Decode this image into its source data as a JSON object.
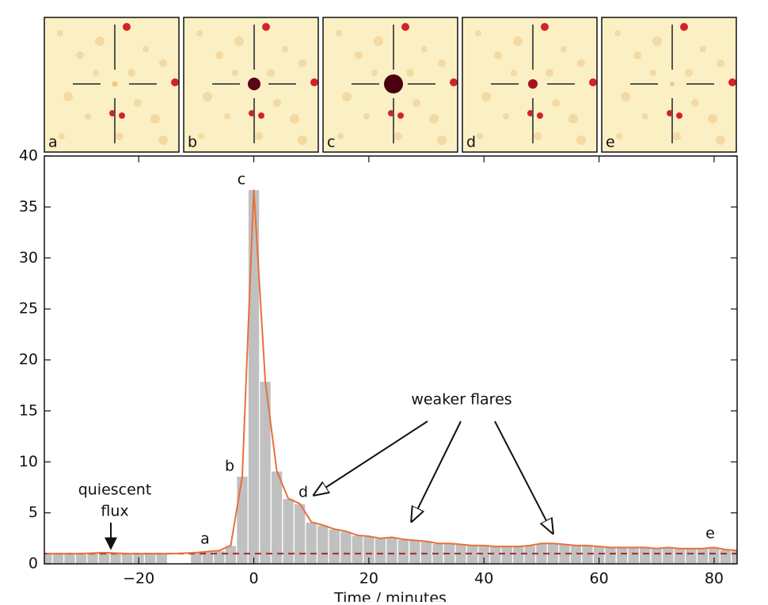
{
  "panels": [
    "a",
    "b",
    "c",
    "d",
    "e"
  ],
  "chart_data": {
    "type": "bar",
    "xlabel": "Time / minutes",
    "xlim": [
      -36.4,
      84
    ],
    "ylim": [
      0,
      40
    ],
    "yticks": [
      0,
      5,
      10,
      15,
      20,
      25,
      30,
      35,
      40
    ],
    "xticks": [
      {
        "value": -20,
        "label": "−20"
      },
      0,
      20,
      40,
      60,
      80
    ],
    "bar_width": 2,
    "bars": {
      "color": "#c0c0c0",
      "x": [
        -36,
        -34,
        -32,
        -30,
        -28,
        -26,
        -24,
        -22,
        -20,
        -18,
        -16,
        -14,
        -12,
        -10,
        -8,
        -6,
        -4,
        -2,
        0,
        2,
        4,
        6,
        8,
        10,
        12,
        14,
        16,
        18,
        20,
        22,
        24,
        26,
        28,
        30,
        32,
        34,
        36,
        38,
        40,
        42,
        44,
        46,
        48,
        50,
        52,
        54,
        56,
        58,
        60,
        62,
        64,
        66,
        68,
        70,
        72,
        74,
        76,
        78,
        80,
        82,
        84
      ],
      "values": [
        1.0,
        1.0,
        1.0,
        1.0,
        1.05,
        1.1,
        1.05,
        1.0,
        1.0,
        1.0,
        1.0,
        null,
        null,
        1.1,
        1.2,
        1.3,
        1.8,
        8.6,
        36.7,
        17.9,
        9.1,
        6.4,
        5.9,
        4.1,
        3.8,
        3.4,
        3.2,
        2.8,
        2.7,
        2.5,
        2.6,
        2.4,
        2.3,
        2.2,
        2.0,
        2.0,
        1.9,
        1.8,
        1.8,
        1.7,
        1.7,
        1.7,
        1.8,
        2.0,
        2.0,
        1.9,
        1.8,
        1.8,
        1.7,
        1.6,
        1.6,
        1.6,
        1.6,
        1.5,
        1.6,
        1.5,
        1.5,
        1.5,
        1.6,
        1.4,
        1.3
      ]
    },
    "line": {
      "color": "#e8703a",
      "x": [
        -36,
        -34,
        -32,
        -30,
        -28,
        -26,
        -24,
        -22,
        -20,
        -18,
        -16,
        -14,
        -12,
        -10,
        -8,
        -6,
        -4,
        -2,
        0,
        2,
        4,
        6,
        8,
        10,
        12,
        14,
        16,
        18,
        20,
        22,
        24,
        26,
        28,
        30,
        32,
        34,
        36,
        38,
        40,
        42,
        44,
        46,
        48,
        50,
        52,
        54,
        56,
        58,
        60,
        62,
        64,
        66,
        68,
        70,
        72,
        74,
        76,
        78,
        80,
        82,
        84
      ],
      "values": [
        1.0,
        1.0,
        1.0,
        1.0,
        1.05,
        1.1,
        1.05,
        1.0,
        1.0,
        1.0,
        1.0,
        1.0,
        1.05,
        1.1,
        1.2,
        1.3,
        1.8,
        8.6,
        36.7,
        17.9,
        9.1,
        6.4,
        5.9,
        4.1,
        3.8,
        3.4,
        3.2,
        2.8,
        2.7,
        2.5,
        2.6,
        2.4,
        2.3,
        2.2,
        2.0,
        2.0,
        1.9,
        1.8,
        1.8,
        1.7,
        1.7,
        1.7,
        1.8,
        2.0,
        2.0,
        1.9,
        1.8,
        1.8,
        1.7,
        1.6,
        1.6,
        1.6,
        1.6,
        1.5,
        1.6,
        1.5,
        1.5,
        1.5,
        1.6,
        1.4,
        1.3
      ]
    },
    "reference_line": {
      "value": 1.0,
      "color": "#a52a2a"
    },
    "annotations": {
      "quiescent": [
        "quiescent",
        "flux"
      ],
      "flares": "weaker flares",
      "points": [
        "a",
        "b",
        "c",
        "d",
        "e"
      ]
    }
  }
}
